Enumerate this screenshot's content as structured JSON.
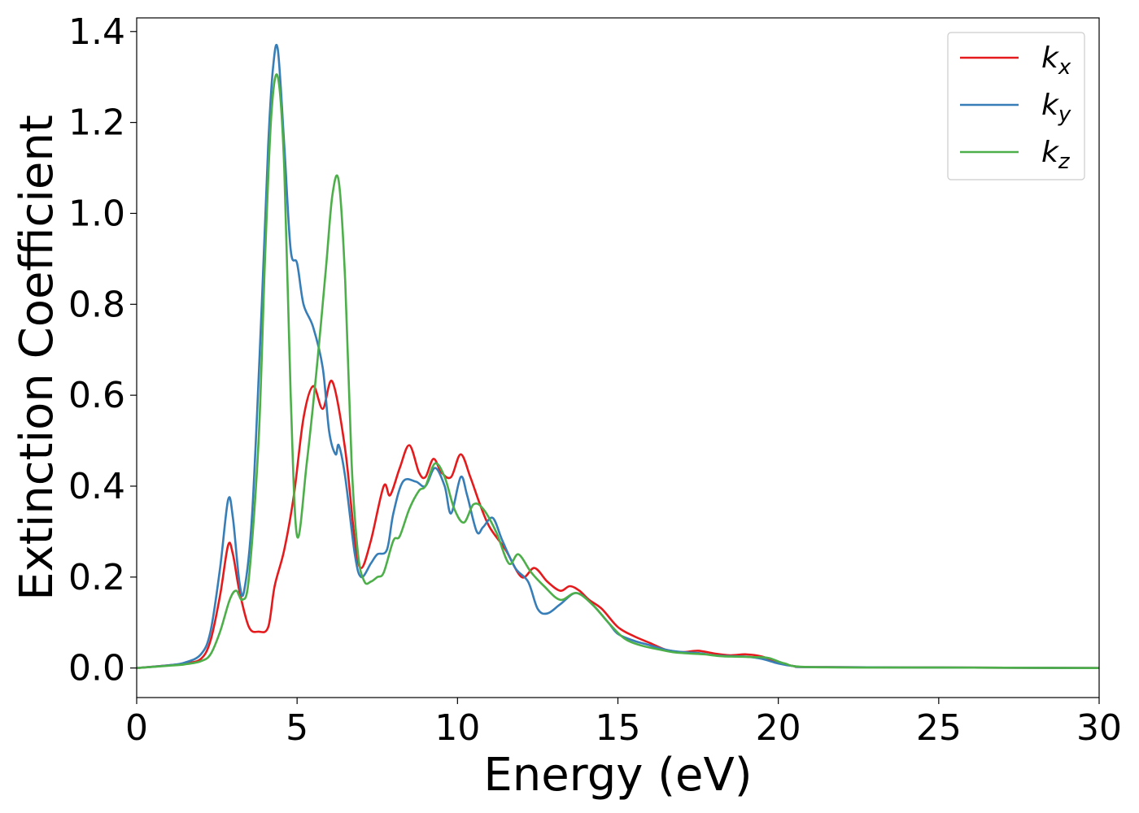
{
  "chart_data": {
    "type": "line",
    "title": "",
    "xlabel": "Energy (eV)",
    "ylabel": "Extinction Coefficient",
    "xlim": [
      0,
      30
    ],
    "ylim": [
      -0.065,
      1.43
    ],
    "xticks": [
      0,
      5,
      10,
      15,
      20,
      25,
      30
    ],
    "xtick_labels": [
      "0",
      "5",
      "10",
      "15",
      "20",
      "25",
      "30"
    ],
    "yticks": [
      0.0,
      0.2,
      0.4,
      0.6,
      0.8,
      1.0,
      1.2,
      1.4
    ],
    "ytick_labels": [
      "0.0",
      "0.2",
      "0.4",
      "0.6",
      "0.8",
      "1.0",
      "1.2",
      "1.4"
    ],
    "grid": false,
    "legend_position": "top-right",
    "series": [
      {
        "name": "k",
        "subscript": "x",
        "color": "#e41a1c",
        "x": [
          0,
          1,
          1.5,
          2,
          2.3,
          2.6,
          2.85,
          3.0,
          3.2,
          3.5,
          3.8,
          4.1,
          4.3,
          4.6,
          4.9,
          5.2,
          5.5,
          5.8,
          6.1,
          6.5,
          6.8,
          7.0,
          7.3,
          7.7,
          7.9,
          8.2,
          8.5,
          8.8,
          9.0,
          9.25,
          9.5,
          9.8,
          10.1,
          10.4,
          10.7,
          11.0,
          11.5,
          12.0,
          12.4,
          12.8,
          13.2,
          13.5,
          13.8,
          14.1,
          14.5,
          15.0,
          15.5,
          16.0,
          16.5,
          17.0,
          17.5,
          18.0,
          18.5,
          19.0,
          19.5,
          20.0,
          20.5,
          21.0,
          25,
          30
        ],
        "y": [
          0.0,
          0.006,
          0.01,
          0.02,
          0.06,
          0.16,
          0.27,
          0.25,
          0.17,
          0.09,
          0.08,
          0.09,
          0.18,
          0.26,
          0.38,
          0.55,
          0.62,
          0.57,
          0.63,
          0.48,
          0.28,
          0.22,
          0.28,
          0.4,
          0.38,
          0.44,
          0.49,
          0.43,
          0.42,
          0.46,
          0.43,
          0.42,
          0.47,
          0.42,
          0.36,
          0.31,
          0.26,
          0.2,
          0.22,
          0.19,
          0.17,
          0.18,
          0.17,
          0.15,
          0.13,
          0.09,
          0.07,
          0.055,
          0.04,
          0.035,
          0.038,
          0.032,
          0.028,
          0.03,
          0.025,
          0.012,
          0.004,
          0.002,
          0.001,
          0.0
        ]
      },
      {
        "name": "k",
        "subscript": "y",
        "color": "#377eb8",
        "x": [
          0,
          1,
          1.5,
          2,
          2.3,
          2.6,
          2.85,
          3.0,
          3.2,
          3.35,
          3.6,
          3.9,
          4.1,
          4.25,
          4.4,
          4.6,
          4.8,
          5.0,
          5.2,
          5.5,
          5.8,
          6.0,
          6.2,
          6.3,
          6.5,
          6.8,
          7.0,
          7.3,
          7.5,
          7.8,
          8.0,
          8.3,
          8.7,
          9.0,
          9.3,
          9.6,
          9.8,
          10.1,
          10.3,
          10.6,
          10.8,
          11.1,
          11.4,
          11.8,
          12.2,
          12.5,
          12.8,
          13.2,
          13.7,
          14.2,
          14.7,
          15.0,
          15.5,
          16.0,
          16.5,
          17.0,
          17.5,
          18.0,
          18.5,
          19.0,
          19.5,
          20.0,
          20.5,
          21.0,
          25,
          30
        ],
        "y": [
          0.0,
          0.006,
          0.012,
          0.03,
          0.08,
          0.22,
          0.37,
          0.33,
          0.19,
          0.17,
          0.34,
          0.8,
          1.15,
          1.32,
          1.36,
          1.15,
          0.92,
          0.89,
          0.8,
          0.75,
          0.66,
          0.52,
          0.47,
          0.49,
          0.42,
          0.25,
          0.2,
          0.23,
          0.25,
          0.26,
          0.34,
          0.41,
          0.41,
          0.4,
          0.44,
          0.4,
          0.34,
          0.42,
          0.38,
          0.3,
          0.31,
          0.33,
          0.28,
          0.22,
          0.19,
          0.13,
          0.12,
          0.14,
          0.165,
          0.14,
          0.1,
          0.075,
          0.06,
          0.05,
          0.04,
          0.035,
          0.033,
          0.028,
          0.026,
          0.025,
          0.02,
          0.01,
          0.004,
          0.002,
          0.001,
          0.0
        ]
      },
      {
        "name": "k",
        "subscript": "z",
        "color": "#4daf4a",
        "x": [
          0,
          1,
          1.5,
          2,
          2.3,
          2.6,
          2.9,
          3.1,
          3.3,
          3.5,
          3.8,
          4.0,
          4.2,
          4.4,
          4.6,
          4.8,
          5.0,
          5.3,
          5.6,
          5.9,
          6.1,
          6.3,
          6.5,
          6.7,
          6.9,
          7.1,
          7.3,
          7.5,
          7.7,
          8.0,
          8.2,
          8.5,
          8.8,
          9.0,
          9.3,
          9.6,
          9.9,
          10.2,
          10.5,
          10.8,
          11.2,
          11.6,
          11.9,
          12.3,
          12.7,
          13.2,
          13.7,
          14.2,
          14.7,
          15.2,
          15.7,
          16.2,
          16.7,
          17.2,
          17.7,
          18.2,
          18.7,
          19.2,
          19.7,
          20.2,
          21.0,
          25,
          30
        ],
        "y": [
          0.0,
          0.005,
          0.008,
          0.015,
          0.03,
          0.08,
          0.15,
          0.17,
          0.15,
          0.2,
          0.5,
          0.9,
          1.22,
          1.3,
          1.1,
          0.6,
          0.29,
          0.45,
          0.65,
          0.88,
          1.04,
          1.07,
          0.85,
          0.45,
          0.25,
          0.19,
          0.19,
          0.2,
          0.21,
          0.28,
          0.29,
          0.35,
          0.39,
          0.4,
          0.45,
          0.42,
          0.35,
          0.32,
          0.36,
          0.35,
          0.3,
          0.23,
          0.25,
          0.21,
          0.18,
          0.15,
          0.165,
          0.14,
          0.1,
          0.065,
          0.05,
          0.042,
          0.035,
          0.032,
          0.03,
          0.026,
          0.025,
          0.024,
          0.022,
          0.01,
          0.002,
          0.001,
          0.0
        ]
      }
    ]
  }
}
